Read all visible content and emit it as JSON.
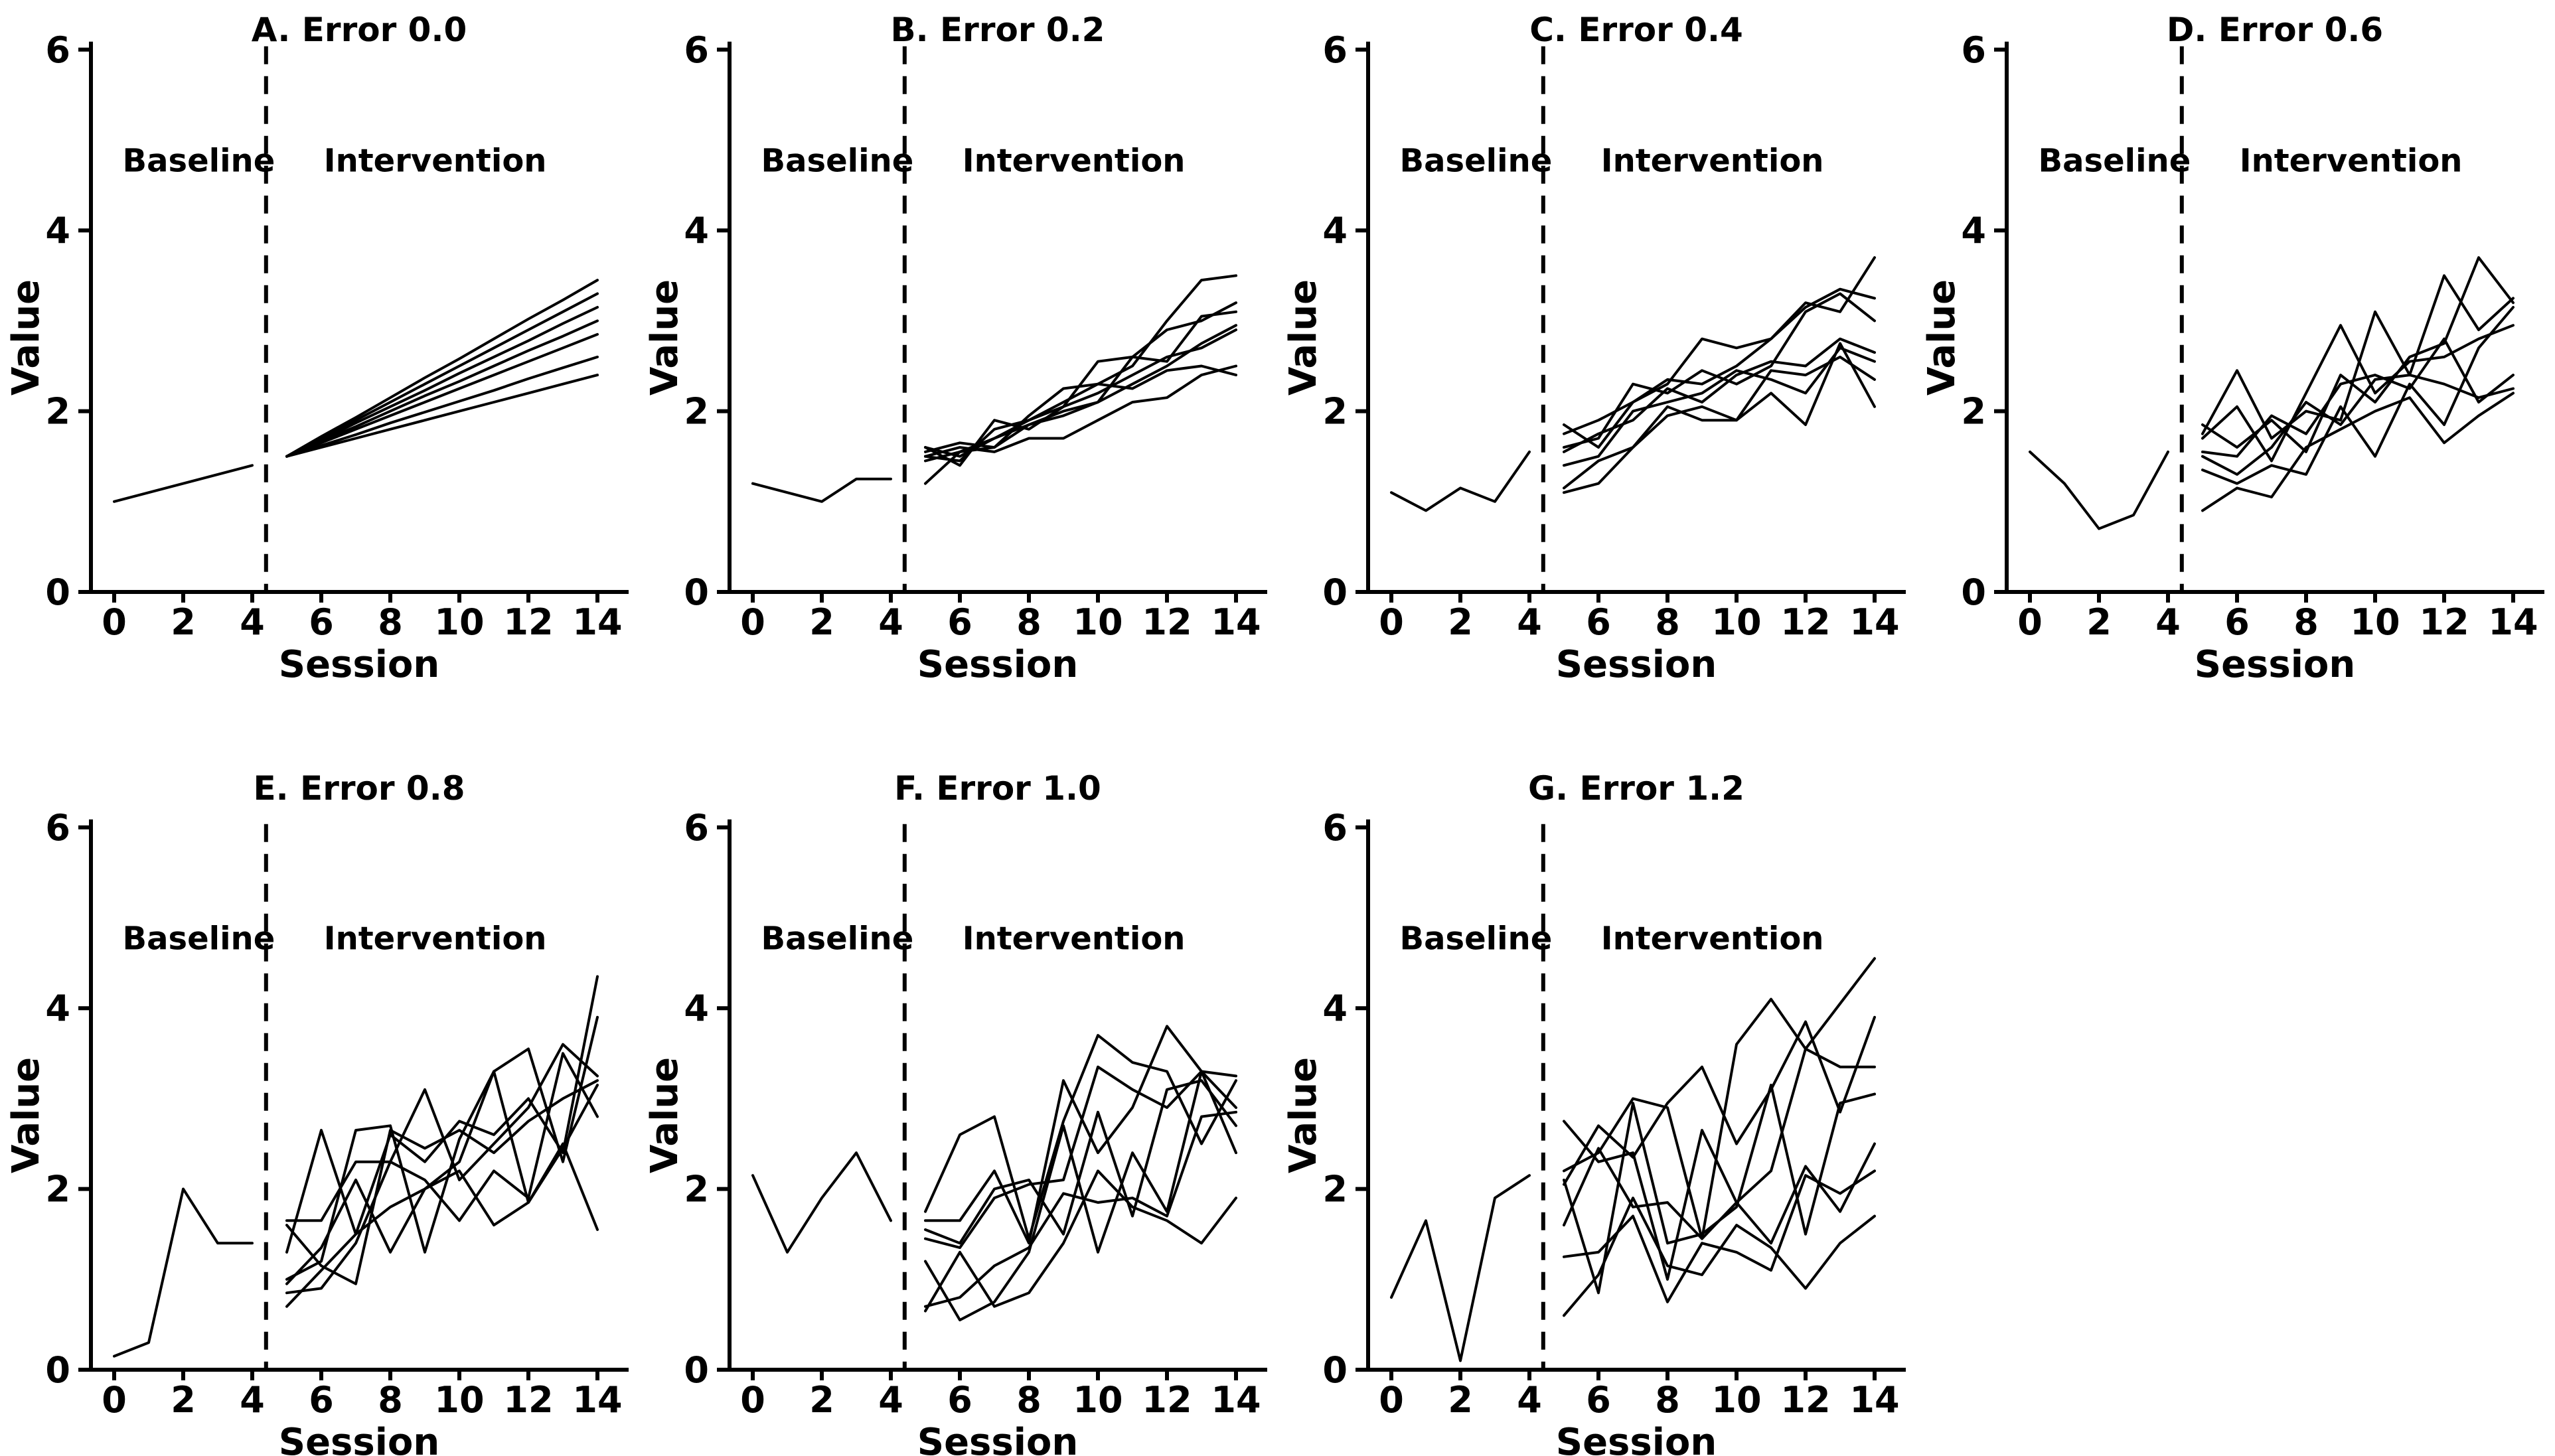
{
  "figure": {
    "background": "#ffffff",
    "line_color": "#000000",
    "text_color": "#000000",
    "xlabel": "Session",
    "ylabel": "Value",
    "phase_labels": {
      "baseline": "Baseline",
      "intervention": "Intervention"
    }
  },
  "chart_data": [
    {
      "type": "line",
      "panel": "A",
      "title": "A. Error 0.0",
      "error_level": 0.0,
      "row": 1,
      "xlabel": "Session",
      "ylabel": "Value",
      "xlim": [
        -0.7,
        15.0
      ],
      "ylim": [
        0,
        6
      ],
      "xticks": [
        0,
        2,
        4,
        6,
        8,
        10,
        12,
        14
      ],
      "yticks": [
        0,
        2,
        4,
        6
      ],
      "grid": false,
      "legend": false,
      "phase_divider_x": 4.4,
      "annotations": [
        "Baseline",
        "Intervention"
      ],
      "baseline": {
        "x": [
          0,
          1,
          2,
          3,
          4
        ],
        "y": [
          1.0,
          1.1,
          1.2,
          1.3,
          1.4
        ]
      },
      "intervention": {
        "x": [
          5,
          6,
          7,
          8,
          9,
          10,
          11,
          12,
          13,
          14
        ],
        "series": [
          [
            1.5,
            1.72,
            1.93,
            2.15,
            2.37,
            2.58,
            2.8,
            3.02,
            3.23,
            3.45
          ],
          [
            1.5,
            1.7,
            1.9,
            2.1,
            2.3,
            2.5,
            2.7,
            2.9,
            3.1,
            3.3
          ],
          [
            1.5,
            1.68,
            1.87,
            2.05,
            2.23,
            2.42,
            2.6,
            2.78,
            2.97,
            3.15
          ],
          [
            1.5,
            1.67,
            1.83,
            2.0,
            2.17,
            2.33,
            2.5,
            2.67,
            2.83,
            3.0
          ],
          [
            1.5,
            1.65,
            1.8,
            1.95,
            2.1,
            2.25,
            2.4,
            2.55,
            2.7,
            2.85
          ],
          [
            1.5,
            1.62,
            1.74,
            1.87,
            1.99,
            2.11,
            2.23,
            2.36,
            2.48,
            2.6
          ],
          [
            1.5,
            1.6,
            1.7,
            1.8,
            1.9,
            2.0,
            2.1,
            2.2,
            2.3,
            2.4
          ]
        ]
      }
    },
    {
      "type": "line",
      "panel": "B",
      "title": "B. Error 0.2",
      "error_level": 0.2,
      "row": 1,
      "xlabel": "Session",
      "ylabel": "Value",
      "xlim": [
        -0.7,
        15.0
      ],
      "ylim": [
        0,
        6
      ],
      "xticks": [
        0,
        2,
        4,
        6,
        8,
        10,
        12,
        14
      ],
      "yticks": [
        0,
        2,
        4,
        6
      ],
      "grid": false,
      "legend": false,
      "phase_divider_x": 4.4,
      "annotations": [
        "Baseline",
        "Intervention"
      ],
      "baseline": {
        "x": [
          0,
          1,
          2,
          3,
          4
        ],
        "y": [
          1.2,
          1.1,
          1.0,
          1.25,
          1.25
        ]
      },
      "intervention": {
        "x": [
          5,
          6,
          7,
          8,
          9,
          10,
          11,
          12,
          13,
          14
        ],
        "series": [
          [
            1.6,
            1.5,
            1.7,
            1.9,
            2.1,
            2.3,
            2.5,
            3.0,
            3.45,
            3.5
          ],
          [
            1.55,
            1.65,
            1.6,
            1.85,
            2.0,
            2.1,
            2.6,
            2.9,
            3.0,
            3.2
          ],
          [
            1.5,
            1.45,
            1.8,
            1.9,
            2.05,
            2.55,
            2.6,
            2.55,
            3.05,
            3.1
          ],
          [
            1.2,
            1.55,
            1.7,
            1.85,
            1.95,
            2.1,
            2.3,
            2.5,
            2.75,
            2.95
          ],
          [
            1.6,
            1.4,
            1.9,
            1.8,
            2.05,
            2.2,
            2.4,
            2.6,
            2.7,
            2.9
          ],
          [
            1.45,
            1.55,
            1.6,
            1.95,
            2.25,
            2.3,
            2.25,
            2.45,
            2.5,
            2.4
          ],
          [
            1.5,
            1.6,
            1.55,
            1.7,
            1.7,
            1.9,
            2.1,
            2.15,
            2.4,
            2.5
          ]
        ]
      }
    },
    {
      "type": "line",
      "panel": "C",
      "title": "C. Error 0.4",
      "error_level": 0.4,
      "row": 1,
      "xlabel": "Session",
      "ylabel": "Value",
      "xlim": [
        -0.7,
        15.0
      ],
      "ylim": [
        0,
        6
      ],
      "xticks": [
        0,
        2,
        4,
        6,
        8,
        10,
        12,
        14
      ],
      "yticks": [
        0,
        2,
        4,
        6
      ],
      "grid": false,
      "legend": false,
      "phase_divider_x": 4.4,
      "annotations": [
        "Baseline",
        "Intervention"
      ],
      "baseline": {
        "x": [
          0,
          1,
          2,
          3,
          4
        ],
        "y": [
          1.1,
          0.9,
          1.15,
          1.0,
          1.55
        ]
      },
      "intervention": {
        "x": [
          5,
          6,
          7,
          8,
          9,
          10,
          11,
          12,
          13,
          14
        ],
        "series": [
          [
            1.85,
            1.6,
            2.1,
            2.35,
            2.3,
            2.5,
            2.8,
            3.2,
            3.1,
            3.7
          ],
          [
            1.75,
            1.9,
            2.1,
            2.3,
            2.8,
            2.7,
            2.8,
            3.15,
            3.35,
            3.25
          ],
          [
            1.6,
            1.7,
            2.3,
            2.2,
            2.45,
            2.3,
            2.5,
            3.1,
            3.3,
            3.0
          ],
          [
            1.55,
            1.75,
            1.9,
            2.25,
            2.1,
            2.4,
            2.55,
            2.5,
            2.8,
            2.65
          ],
          [
            1.4,
            1.5,
            2.0,
            2.1,
            2.2,
            2.45,
            2.35,
            2.2,
            2.7,
            2.55
          ],
          [
            1.1,
            1.2,
            1.6,
            2.05,
            1.9,
            1.9,
            2.45,
            2.4,
            2.6,
            2.35
          ],
          [
            1.15,
            1.45,
            1.6,
            1.95,
            2.05,
            1.9,
            2.2,
            1.85,
            2.75,
            2.05
          ]
        ]
      }
    },
    {
      "type": "line",
      "panel": "D",
      "title": "D. Error 0.6",
      "error_level": 0.6,
      "row": 1,
      "xlabel": "Session",
      "ylabel": "Value",
      "xlim": [
        -0.7,
        15.0
      ],
      "ylim": [
        0,
        6
      ],
      "xticks": [
        0,
        2,
        4,
        6,
        8,
        10,
        12,
        14
      ],
      "yticks": [
        0,
        2,
        4,
        6
      ],
      "grid": false,
      "legend": false,
      "phase_divider_x": 4.4,
      "annotations": [
        "Baseline",
        "Intervention"
      ],
      "baseline": {
        "x": [
          0,
          1,
          2,
          3,
          4
        ],
        "y": [
          1.55,
          1.2,
          0.7,
          0.85,
          1.55
        ]
      },
      "intervention": {
        "x": [
          5,
          6,
          7,
          8,
          9,
          10,
          11,
          12,
          13,
          14
        ],
        "series": [
          [
            1.85,
            1.6,
            1.9,
            1.55,
            2.4,
            2.1,
            2.6,
            2.75,
            3.7,
            3.2
          ],
          [
            1.75,
            2.45,
            1.7,
            2.0,
            1.9,
            3.1,
            2.4,
            3.5,
            2.9,
            3.25
          ],
          [
            1.7,
            2.05,
            1.45,
            2.2,
            2.95,
            2.2,
            2.55,
            2.6,
            2.8,
            2.95
          ],
          [
            1.55,
            1.5,
            1.95,
            1.75,
            2.3,
            2.4,
            2.25,
            2.8,
            2.1,
            2.4
          ],
          [
            1.5,
            1.3,
            1.6,
            2.1,
            1.85,
            2.35,
            2.4,
            2.3,
            2.15,
            2.25
          ],
          [
            1.35,
            1.2,
            1.4,
            1.3,
            2.05,
            1.5,
            2.3,
            1.85,
            2.7,
            3.15
          ],
          [
            0.9,
            1.15,
            1.05,
            1.6,
            1.8,
            2.0,
            2.15,
            1.65,
            1.95,
            2.2
          ]
        ]
      }
    },
    {
      "type": "line",
      "panel": "E",
      "title": "E. Error 0.8",
      "error_level": 0.8,
      "row": 2,
      "xlabel": "Session",
      "ylabel": "Value",
      "xlim": [
        -0.7,
        15.0
      ],
      "ylim": [
        0,
        6
      ],
      "xticks": [
        0,
        2,
        4,
        6,
        8,
        10,
        12,
        14
      ],
      "yticks": [
        0,
        2,
        4,
        6
      ],
      "grid": false,
      "legend": false,
      "phase_divider_x": 4.4,
      "annotations": [
        "Baseline",
        "Intervention"
      ],
      "baseline": {
        "x": [
          0,
          1,
          2,
          3,
          4
        ],
        "y": [
          0.15,
          0.3,
          2.0,
          1.4,
          1.4
        ]
      },
      "intervention": {
        "x": [
          5,
          6,
          7,
          8,
          9,
          10,
          11,
          12,
          13,
          14
        ],
        "series": [
          [
            1.3,
            2.65,
            1.5,
            2.6,
            2.3,
            2.75,
            2.6,
            3.0,
            2.4,
            4.35
          ],
          [
            1.0,
            1.2,
            2.65,
            2.7,
            1.3,
            2.55,
            3.3,
            3.55,
            2.3,
            3.9
          ],
          [
            1.65,
            1.65,
            2.3,
            2.3,
            3.1,
            2.1,
            2.5,
            2.9,
            3.6,
            3.25
          ],
          [
            1.6,
            1.15,
            0.95,
            2.65,
            2.45,
            2.65,
            2.4,
            2.75,
            3.0,
            3.2
          ],
          [
            0.95,
            1.35,
            2.1,
            1.3,
            2.0,
            2.3,
            3.3,
            1.85,
            2.45,
            3.15
          ],
          [
            0.85,
            0.9,
            1.4,
            2.3,
            2.1,
            1.65,
            2.2,
            1.9,
            3.5,
            2.8
          ],
          [
            0.7,
            1.1,
            1.5,
            1.8,
            2.0,
            2.2,
            1.6,
            1.85,
            2.5,
            1.55
          ]
        ]
      }
    },
    {
      "type": "line",
      "panel": "F",
      "title": "F. Error 1.0",
      "error_level": 1.0,
      "row": 2,
      "xlabel": "Session",
      "ylabel": "Value",
      "xlim": [
        -0.7,
        15.0
      ],
      "ylim": [
        0,
        6
      ],
      "xticks": [
        0,
        2,
        4,
        6,
        8,
        10,
        12,
        14
      ],
      "yticks": [
        0,
        2,
        4,
        6
      ],
      "grid": false,
      "legend": false,
      "phase_divider_x": 4.4,
      "annotations": [
        "Baseline",
        "Intervention"
      ],
      "baseline": {
        "x": [
          0,
          1,
          2,
          3,
          4
        ],
        "y": [
          2.15,
          1.3,
          1.9,
          2.4,
          1.65
        ]
      },
      "intervention": {
        "x": [
          5,
          6,
          7,
          8,
          9,
          10,
          11,
          12,
          13,
          14
        ],
        "series": [
          [
            1.75,
            2.6,
            2.8,
            1.45,
            2.75,
            3.7,
            3.4,
            3.3,
            2.5,
            3.2
          ],
          [
            1.65,
            1.65,
            2.2,
            1.4,
            3.2,
            2.4,
            2.9,
            3.8,
            3.3,
            2.9
          ],
          [
            1.45,
            1.35,
            1.9,
            2.05,
            2.1,
            3.35,
            3.1,
            2.9,
            3.3,
            3.25
          ],
          [
            1.55,
            1.4,
            2.0,
            2.1,
            1.5,
            2.85,
            1.7,
            3.1,
            3.2,
            2.7
          ],
          [
            1.2,
            0.55,
            0.75,
            1.3,
            2.7,
            1.3,
            2.4,
            1.75,
            3.3,
            2.4
          ],
          [
            0.7,
            0.8,
            1.15,
            1.35,
            1.95,
            1.85,
            1.9,
            1.7,
            2.8,
            2.85
          ],
          [
            0.65,
            1.3,
            0.7,
            0.85,
            1.4,
            2.2,
            1.8,
            1.65,
            1.4,
            1.9
          ]
        ]
      }
    },
    {
      "type": "line",
      "panel": "G",
      "title": "G. Error 1.2",
      "error_level": 1.2,
      "row": 2,
      "xlabel": "Session",
      "ylabel": "Value",
      "xlim": [
        -0.7,
        15.0
      ],
      "ylim": [
        0,
        6
      ],
      "xticks": [
        0,
        2,
        4,
        6,
        8,
        10,
        12,
        14
      ],
      "yticks": [
        0,
        2,
        4,
        6
      ],
      "grid": false,
      "legend": false,
      "phase_divider_x": 4.4,
      "annotations": [
        "Baseline",
        "Intervention"
      ],
      "baseline": {
        "x": [
          0,
          1,
          2,
          3,
          4
        ],
        "y": [
          0.8,
          1.65,
          0.1,
          1.9,
          2.15
        ]
      },
      "intervention": {
        "x": [
          5,
          6,
          7,
          8,
          9,
          10,
          11,
          12,
          13,
          14
        ],
        "series": [
          [
            2.2,
            2.4,
            3.0,
            2.9,
            1.45,
            3.6,
            4.1,
            3.55,
            4.05,
            4.55
          ],
          [
            2.05,
            2.7,
            2.35,
            2.95,
            3.35,
            2.5,
            3.1,
            3.85,
            2.85,
            3.9
          ],
          [
            2.75,
            2.3,
            2.4,
            1.0,
            2.65,
            1.85,
            2.2,
            3.55,
            3.35,
            3.35
          ],
          [
            2.1,
            0.85,
            2.95,
            1.4,
            1.5,
            1.8,
            3.15,
            1.5,
            2.95,
            3.05
          ],
          [
            1.6,
            2.45,
            1.8,
            1.85,
            1.45,
            1.85,
            1.4,
            2.25,
            1.75,
            2.5
          ],
          [
            1.25,
            1.3,
            1.7,
            0.75,
            1.4,
            1.3,
            1.1,
            2.15,
            1.95,
            2.2
          ],
          [
            0.6,
            1.05,
            1.9,
            1.15,
            1.05,
            1.6,
            1.35,
            0.9,
            1.4,
            1.7
          ]
        ]
      }
    }
  ]
}
